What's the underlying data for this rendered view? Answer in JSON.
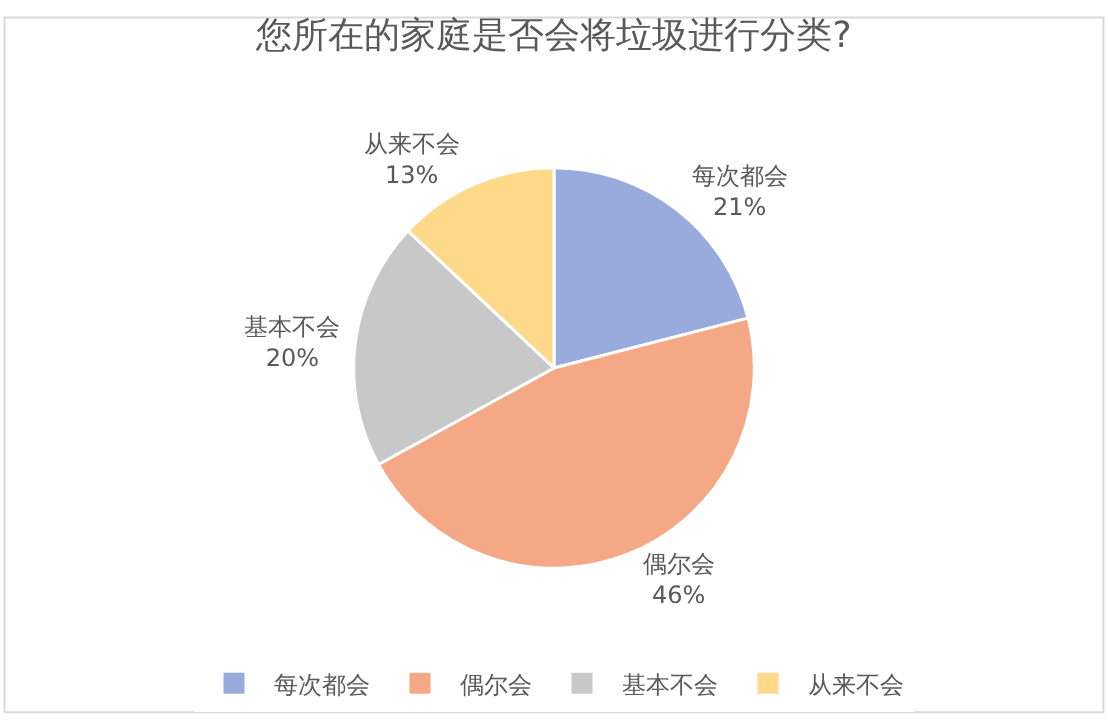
{
  "chart_data": {
    "type": "pie",
    "title": "您所在的家庭是否会将垃圾进行分类?",
    "categories": [
      "每次都会",
      "偶尔会",
      "基本不会",
      "从来不会"
    ],
    "values": [
      21,
      46,
      20,
      13
    ],
    "value_labels": [
      "21%",
      "46%",
      "20%",
      "13%"
    ],
    "colors": [
      "#98abdc",
      "#f5a885",
      "#c8c8c8",
      "#fed98a"
    ],
    "legend": "bottom"
  }
}
